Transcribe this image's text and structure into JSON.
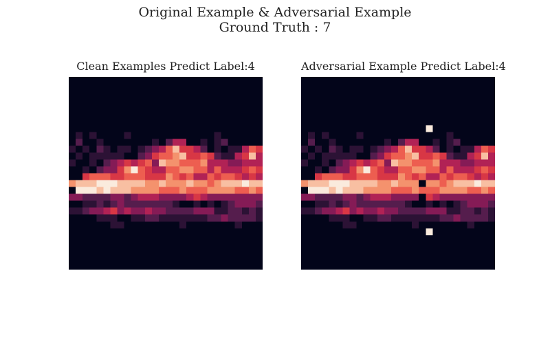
{
  "title": {
    "line1": "Original Example & Adversarial Example",
    "line2": "Ground Truth : 7"
  },
  "chart_data": [
    {
      "type": "heatmap",
      "title": "Clean Examples Predict Label:4",
      "rows": 28,
      "cols": 28,
      "colormap": [
        "#03051a",
        "#4c1d4b",
        "#a11a5b",
        "#e83f3f",
        "#f69c73",
        "#faebdd"
      ],
      "values": [
        "0000000000000000000000000000",
        "0000000000000000000000000000",
        "0000000000000000000000000000",
        "0000000000000000000000000000",
        "0000000000000000000000000000",
        "0000000000000000000000000000",
        "0000000000000000000000000000",
        "0000000000000000000000000000",
        "0101000010000000000001000000",
        "0200100000001024400101200000",
        "1010210110123468554201011465",
        "0101111100235667855652114584",
        "1001023454563877666744433444",
        "0010233579654466776646444565",
        "0056665566655576564465665454",
        "7888999888877877787767888988",
        "0999898887777666766677776676",
        "3322223323444333345433333333",
        "0011212322222221001010123332",
        "1123345343343322223331122121",
        "0000111001122111111122322221",
        "0000001100000000100000001000",
        "0000000000000000000000000000",
        "0000000000000000000000000000",
        "0000000000000000000000000000",
        "0000000000000000000000000000",
        "0000000000000000000000000000",
        "0000000000000000000000000000"
      ],
      "scale": [
        0,
        9
      ]
    },
    {
      "type": "heatmap",
      "title": "Adversarial Example Predict Label:4",
      "rows": 28,
      "cols": 28,
      "colormap": [
        "#03051a",
        "#4c1d4b",
        "#a11a5b",
        "#e83f3f",
        "#f69c73",
        "#faebdd"
      ],
      "values": [
        "0000000000000000000000000000",
        "0000000000000000000000000000",
        "0000000000000000000000000000",
        "0000000000000000000000000000",
        "0000000000000000000000000000",
        "0000000000000000000000000000",
        "0000000000000000000000000000",
        "0000000000000000009000000000",
        "0101000010000000000001000000",
        "0200100000001024400101200000",
        "1010210110123468554201011465",
        "0101111100235667855652114584",
        "1001023454563877666744433444",
        "0010233579654466776646444565",
        "0056665566655576564465665454",
        "7888999888877877707767888988",
        "0999898887777666766677776676",
        "3322223323444333305433333333",
        "0011212322222221001010123332",
        "1123345343343322223331122121",
        "0000111001122111111122322221",
        "0000001100000000100000001000",
        "0000000000000000009000000000",
        "0000000000000000000000000000",
        "0000000000000000000000000000",
        "0000000000000000000000000000",
        "0000000000000000000000000000",
        "0000000000000000000000000000"
      ],
      "scale": [
        0,
        9
      ]
    }
  ]
}
